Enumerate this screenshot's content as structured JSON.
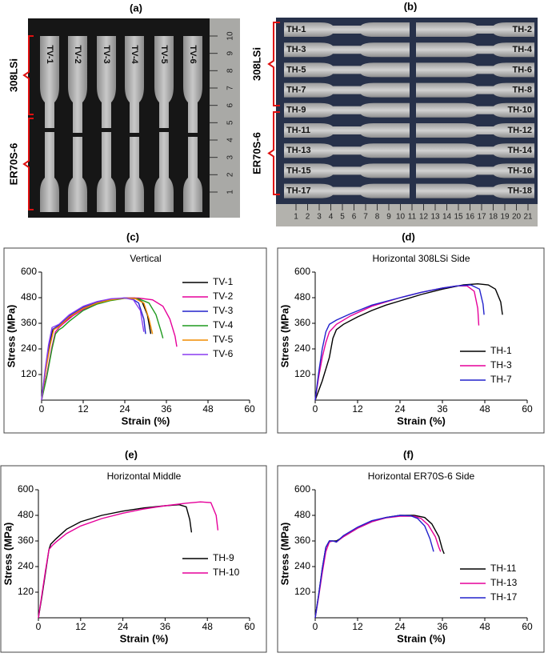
{
  "photos": [
    {
      "label": "(a)",
      "groups": [
        "308LSi",
        "ER70S-6"
      ],
      "specimens": [
        "TV-1",
        "TV-2",
        "TV-3",
        "TV-4",
        "TV-5",
        "TV-6"
      ],
      "ruler_ticks": [
        1,
        2,
        3,
        4,
        5,
        6,
        7,
        8,
        9,
        10
      ]
    },
    {
      "label": "(b)",
      "groups": [
        "308LSi",
        "ER70S-6"
      ],
      "specimens": [
        "TH-1",
        "TH-2",
        "TH-3",
        "TH-4",
        "TH-5",
        "TH-6",
        "TH-7",
        "TH-8",
        "TH-9",
        "TH-10",
        "TH-11",
        "TH-12",
        "TH-13",
        "TH-14",
        "TH-15",
        "TH-16",
        "TH-17",
        "TH-18"
      ],
      "ruler_ticks": [
        1,
        2,
        3,
        4,
        5,
        6,
        7,
        8,
        9,
        10,
        11,
        12,
        13,
        14,
        15,
        16,
        17,
        18,
        19,
        20,
        21
      ]
    }
  ],
  "chart_data": [
    {
      "type": "line",
      "panel": "(c)",
      "title": "Vertical",
      "x_label": "Strain (%)",
      "y_label": "Stress (MPa)",
      "xlim": [
        0,
        60
      ],
      "xticks": [
        0,
        12,
        24,
        36,
        48,
        60
      ],
      "ylim": [
        0,
        600
      ],
      "yticks": [
        120,
        240,
        360,
        480,
        600
      ],
      "legend": "upper right",
      "series": [
        {
          "name": "TV-1",
          "color": "#000000",
          "x": [
            0,
            1,
            2,
            3,
            4,
            6,
            9,
            12,
            16,
            20,
            24,
            27,
            29,
            30.5,
            31.5
          ],
          "values": [
            0,
            120,
            230,
            320,
            340,
            360,
            400,
            430,
            455,
            470,
            478,
            478,
            460,
            400,
            310
          ]
        },
        {
          "name": "TV-2",
          "color": "#e6009a",
          "x": [
            0,
            1.5,
            3,
            4,
            5,
            6,
            9,
            12,
            16,
            20,
            24,
            28,
            32,
            35,
            37,
            38.5,
            39
          ],
          "values": [
            0,
            120,
            250,
            320,
            340,
            355,
            395,
            425,
            450,
            468,
            478,
            478,
            470,
            440,
            380,
            300,
            250
          ]
        },
        {
          "name": "TV-3",
          "color": "#2222cc",
          "x": [
            0,
            1,
            2,
            3,
            5,
            8,
            12,
            16,
            20,
            24,
            26,
            28,
            29.5,
            30
          ],
          "values": [
            0,
            130,
            250,
            330,
            350,
            395,
            435,
            458,
            472,
            479,
            476,
            455,
            380,
            310
          ]
        },
        {
          "name": "TV-4",
          "color": "#1f9a1f",
          "x": [
            0,
            1.5,
            3,
            4,
            5,
            6,
            8,
            12,
            16,
            20,
            24,
            28,
            31,
            33,
            34.5,
            35
          ],
          "values": [
            0,
            110,
            240,
            310,
            330,
            340,
            370,
            420,
            450,
            467,
            477,
            475,
            455,
            400,
            320,
            290
          ]
        },
        {
          "name": "TV-5",
          "color": "#f08c00",
          "x": [
            0,
            1,
            2.5,
            3.5,
            5,
            8,
            12,
            16,
            20,
            24,
            27,
            29.5,
            31,
            32
          ],
          "values": [
            0,
            120,
            260,
            330,
            345,
            390,
            430,
            455,
            470,
            478,
            476,
            455,
            380,
            310
          ]
        },
        {
          "name": "TV-6",
          "color": "#8a3cf0",
          "x": [
            0,
            1,
            2,
            3,
            5,
            8,
            12,
            16,
            20,
            24,
            26.5,
            28.5,
            29.5
          ],
          "values": [
            0,
            140,
            260,
            340,
            355,
            400,
            440,
            462,
            475,
            479,
            470,
            420,
            320
          ]
        }
      ]
    },
    {
      "type": "line",
      "panel": "(d)",
      "title": "Horizontal 308LSi Side",
      "x_label": "Strain (%)",
      "y_label": "Stress (MPa)",
      "xlim": [
        0,
        60
      ],
      "xticks": [
        0,
        12,
        24,
        36,
        48,
        60
      ],
      "ylim": [
        0,
        600
      ],
      "yticks": [
        120,
        240,
        360,
        480,
        600
      ],
      "legend": "lower right",
      "series": [
        {
          "name": "TH-1",
          "color": "#000000",
          "x": [
            0,
            2,
            4,
            5,
            6,
            8,
            12,
            16,
            20,
            24,
            30,
            36,
            42,
            46,
            49,
            51,
            52.5,
            53
          ],
          "values": [
            0,
            90,
            200,
            290,
            330,
            355,
            390,
            420,
            445,
            465,
            495,
            520,
            540,
            545,
            540,
            520,
            460,
            400
          ]
        },
        {
          "name": "TH-3",
          "color": "#e6009a",
          "x": [
            0,
            1,
            2,
            3,
            4,
            6,
            10,
            16,
            24,
            30,
            36,
            40,
            43,
            45,
            46,
            46.3
          ],
          "values": [
            0,
            110,
            200,
            270,
            320,
            355,
            395,
            440,
            480,
            505,
            525,
            535,
            535,
            510,
            430,
            350
          ]
        },
        {
          "name": "TH-7",
          "color": "#2222cc",
          "x": [
            0,
            1,
            2,
            3,
            4,
            6,
            10,
            16,
            24,
            30,
            36,
            40,
            44,
            46.5,
            47.5,
            47.8
          ],
          "values": [
            0,
            130,
            240,
            320,
            355,
            375,
            405,
            445,
            480,
            505,
            525,
            535,
            540,
            520,
            450,
            400
          ]
        }
      ]
    },
    {
      "type": "line",
      "panel": "(e)",
      "title": "Horizontal Middle",
      "x_label": "Strain (%)",
      "y_label": "Stress (MPa)",
      "xlim": [
        0,
        60
      ],
      "xticks": [
        0,
        12,
        24,
        36,
        48,
        60
      ],
      "ylim": [
        0,
        600
      ],
      "yticks": [
        120,
        240,
        360,
        480,
        600
      ],
      "legend": "center right",
      "series": [
        {
          "name": "TH-9",
          "color": "#000000",
          "x": [
            0,
            1,
            2,
            3,
            3.5,
            5,
            8,
            12,
            18,
            24,
            30,
            36,
            40,
            42,
            43,
            43.5
          ],
          "values": [
            0,
            100,
            210,
            320,
            345,
            370,
            415,
            450,
            480,
            500,
            515,
            525,
            530,
            520,
            460,
            400
          ]
        },
        {
          "name": "TH-10",
          "color": "#e6009a",
          "x": [
            0,
            1,
            2,
            3,
            4,
            5,
            8,
            12,
            18,
            24,
            30,
            36,
            42,
            46,
            49,
            50.5,
            51
          ],
          "values": [
            0,
            110,
            220,
            320,
            340,
            355,
            395,
            430,
            465,
            490,
            510,
            525,
            537,
            543,
            540,
            480,
            410
          ]
        }
      ]
    },
    {
      "type": "line",
      "panel": "(f)",
      "title": "Horizontal ER70S-6 Side",
      "x_label": "Strain (%)",
      "y_label": "Stress (MPa)",
      "xlim": [
        0,
        60
      ],
      "xticks": [
        0,
        12,
        24,
        36,
        48,
        60
      ],
      "ylim": [
        0,
        600
      ],
      "yticks": [
        120,
        240,
        360,
        480,
        600
      ],
      "legend": "lower right",
      "series": [
        {
          "name": "TH-11",
          "color": "#000000",
          "x": [
            0,
            1,
            2,
            3,
            4,
            5,
            6,
            8,
            12,
            16,
            20,
            24,
            28,
            31,
            33,
            35,
            36,
            36.5
          ],
          "values": [
            0,
            110,
            230,
            330,
            360,
            360,
            360,
            380,
            420,
            450,
            470,
            480,
            480,
            470,
            440,
            380,
            320,
            300
          ]
        },
        {
          "name": "TH-13",
          "color": "#e6009a",
          "x": [
            0,
            1,
            2,
            3,
            4,
            5,
            6,
            8,
            12,
            16,
            20,
            24,
            28,
            30,
            32,
            34,
            35,
            35.5
          ],
          "values": [
            0,
            100,
            210,
            310,
            355,
            360,
            355,
            380,
            420,
            450,
            468,
            476,
            476,
            465,
            435,
            380,
            330,
            310
          ]
        },
        {
          "name": "TH-17",
          "color": "#2222cc",
          "x": [
            0,
            1,
            2,
            3,
            4,
            5,
            6,
            8,
            12,
            16,
            20,
            24,
            27,
            29,
            31,
            32.5,
            33.5
          ],
          "values": [
            0,
            110,
            230,
            330,
            360,
            360,
            355,
            385,
            425,
            455,
            470,
            480,
            478,
            465,
            430,
            370,
            310
          ]
        }
      ]
    }
  ]
}
